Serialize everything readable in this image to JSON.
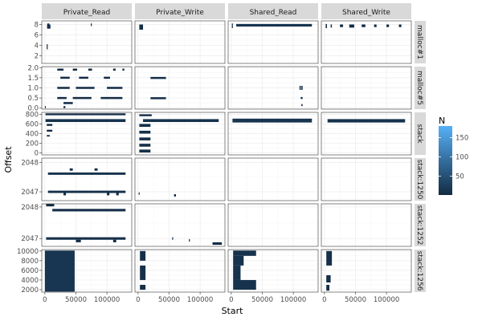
{
  "chart_data": {
    "type": "heatmap",
    "title": "",
    "xlabel": "Start",
    "ylabel": "Offset",
    "columns": [
      "Private_Read",
      "Private_Write",
      "Shared_Read",
      "Shared_Write"
    ],
    "x_ticks": [
      "0",
      "50000",
      "100000"
    ],
    "x_tick_values": [
      0,
      50000,
      100000
    ],
    "xlim": [
      -5000,
      140000
    ],
    "legend": {
      "title": "N",
      "position": "right",
      "ticks": [
        "50",
        "100",
        "150"
      ],
      "tick_values": [
        50,
        100,
        150
      ],
      "range": [
        1,
        180
      ],
      "color_low": "#132b43",
      "color_high": "#56b1f7"
    },
    "grid": true,
    "panel_bg": "#ffffff",
    "grid_color": "#ebebeb",
    "strip_bg": "#d9d9d9",
    "rows": [
      {
        "name": "malloc#1",
        "yticks": [
          "2",
          "4",
          "6",
          "8"
        ],
        "ytick_values": [
          2,
          4,
          6,
          8
        ],
        "ylim": [
          0.5,
          8.7
        ],
        "cells": {
          "Private_Read": [
            {
              "x0": 3000,
              "x1": 4000,
              "y0": 3.2,
              "y1": 4.2,
              "n": 3
            },
            {
              "x0": 3500,
              "x1": 9000,
              "y0": 7.2,
              "y1": 8.0,
              "n": 8
            },
            {
              "x0": 4000,
              "x1": 7000,
              "y0": 7.8,
              "y1": 8.2,
              "n": 6
            },
            {
              "x0": 74000,
              "x1": 75500,
              "y0": 7.7,
              "y1": 8.2,
              "n": 2
            }
          ],
          "Private_Write": [
            {
              "x0": 2000,
              "x1": 8000,
              "y0": 7.0,
              "y1": 8.0,
              "n": 6
            }
          ],
          "Shared_Read": [
            {
              "x0": 1000,
              "x1": 2500,
              "y0": 7.3,
              "y1": 8.2,
              "n": 3
            },
            {
              "x0": 8000,
              "x1": 130000,
              "y0": 7.6,
              "y1": 8.1,
              "n": 14
            }
          ],
          "Shared_Write": [
            {
              "x0": 2000,
              "x1": 4000,
              "y0": 7.3,
              "y1": 8.1,
              "n": 4
            },
            {
              "x0": 10000,
              "x1": 12000,
              "y0": 7.4,
              "y1": 8.0,
              "n": 2
            },
            {
              "x0": 25000,
              "x1": 30000,
              "y0": 7.5,
              "y1": 8.0,
              "n": 3
            },
            {
              "x0": 40000,
              "x1": 48000,
              "y0": 7.4,
              "y1": 8.0,
              "n": 3
            },
            {
              "x0": 60000,
              "x1": 66000,
              "y0": 7.5,
              "y1": 8.0,
              "n": 3
            },
            {
              "x0": 80000,
              "x1": 84000,
              "y0": 7.5,
              "y1": 8.0,
              "n": 2
            },
            {
              "x0": 100000,
              "x1": 104000,
              "y0": 7.5,
              "y1": 8.0,
              "n": 3
            },
            {
              "x0": 120000,
              "x1": 124000,
              "y0": 7.5,
              "y1": 8.0,
              "n": 2
            }
          ]
        }
      },
      {
        "name": "malloc#5",
        "yticks": [
          "0.0",
          "0.5",
          "1.0",
          "1.5",
          "2.0"
        ],
        "ytick_values": [
          0,
          0.5,
          1.0,
          1.5,
          2.0
        ],
        "ylim": [
          -0.05,
          2.05
        ],
        "cells": {
          "Private_Read": [
            {
              "x0": 20000,
              "x1": 30000,
              "y0": 1.85,
              "y1": 1.95,
              "n": 3
            },
            {
              "x0": 45000,
              "x1": 52000,
              "y0": 1.85,
              "y1": 1.95,
              "n": 2
            },
            {
              "x0": 70000,
              "x1": 76000,
              "y0": 1.85,
              "y1": 1.95,
              "n": 2
            },
            {
              "x0": 110000,
              "x1": 114000,
              "y0": 1.85,
              "y1": 1.95,
              "n": 2
            },
            {
              "x0": 125000,
              "x1": 128000,
              "y0": 1.85,
              "y1": 1.95,
              "n": 2
            },
            {
              "x0": 25000,
              "x1": 40000,
              "y0": 1.45,
              "y1": 1.55,
              "n": 3
            },
            {
              "x0": 55000,
              "x1": 70000,
              "y0": 1.45,
              "y1": 1.55,
              "n": 3
            },
            {
              "x0": 95000,
              "x1": 105000,
              "y0": 1.45,
              "y1": 1.55,
              "n": 2
            },
            {
              "x0": 20000,
              "x1": 40000,
              "y0": 0.95,
              "y1": 1.05,
              "n": 3
            },
            {
              "x0": 50000,
              "x1": 80000,
              "y0": 0.95,
              "y1": 1.05,
              "n": 3
            },
            {
              "x0": 100000,
              "x1": 125000,
              "y0": 0.95,
              "y1": 1.05,
              "n": 3
            },
            {
              "x0": 20000,
              "x1": 35000,
              "y0": 0.45,
              "y1": 0.55,
              "n": 3
            },
            {
              "x0": 45000,
              "x1": 75000,
              "y0": 0.45,
              "y1": 0.55,
              "n": 3
            },
            {
              "x0": 90000,
              "x1": 125000,
              "y0": 0.45,
              "y1": 0.55,
              "n": 3
            },
            {
              "x0": 30000,
              "x1": 45000,
              "y0": 0.2,
              "y1": 0.3,
              "n": 2
            },
            {
              "x0": 30000,
              "x1": 33000,
              "y0": 0.0,
              "y1": 0.1,
              "n": 2
            },
            {
              "x0": 0,
              "x1": 1500,
              "y0": 0.0,
              "y1": 0.1,
              "n": 2
            }
          ],
          "Private_Write": [
            {
              "x0": 20000,
              "x1": 45000,
              "y0": 1.44,
              "y1": 1.54,
              "n": 6
            },
            {
              "x0": 20000,
              "x1": 45000,
              "y0": 0.44,
              "y1": 0.54,
              "n": 6
            }
          ],
          "Shared_Read": [
            {
              "x0": 110000,
              "x1": 112000,
              "y0": 0.9,
              "y1": 1.1,
              "n": 2
            },
            {
              "x0": 113000,
              "x1": 115000,
              "y0": 0.9,
              "y1": 1.1,
              "n": 2
            },
            {
              "x0": 112000,
              "x1": 115000,
              "y0": 0.45,
              "y1": 0.55,
              "n": 2
            },
            {
              "x0": 113000,
              "x1": 115000,
              "y0": 0.1,
              "y1": 0.2,
              "n": 2
            }
          ],
          "Shared_Write": []
        }
      },
      {
        "name": "stack",
        "yticks": [
          "0",
          "200",
          "400",
          "600",
          "800"
        ],
        "ytick_values": [
          0,
          200,
          400,
          600,
          800
        ],
        "ylim": [
          -40,
          840
        ],
        "cells": {
          "Private_Read": [
            {
              "x0": 1000,
              "x1": 130000,
              "y0": 780,
              "y1": 820,
              "n": 8
            },
            {
              "x0": 1000,
              "x1": 130000,
              "y0": 640,
              "y1": 700,
              "n": 10
            },
            {
              "x0": 3000,
              "x1": 12000,
              "y0": 560,
              "y1": 600,
              "n": 4
            },
            {
              "x0": 3000,
              "x1": 12000,
              "y0": 440,
              "y1": 480,
              "n": 4
            },
            {
              "x0": 3000,
              "x1": 8000,
              "y0": 340,
              "y1": 370,
              "n": 3
            }
          ],
          "Private_Write": [
            {
              "x0": 8000,
              "x1": 130000,
              "y0": 640,
              "y1": 700,
              "n": 10
            },
            {
              "x0": 2000,
              "x1": 22000,
              "y0": 760,
              "y1": 800,
              "n": 5
            },
            {
              "x0": 2000,
              "x1": 20000,
              "y0": 540,
              "y1": 600,
              "n": 6
            },
            {
              "x0": 2000,
              "x1": 20000,
              "y0": 400,
              "y1": 460,
              "n": 6
            },
            {
              "x0": 2000,
              "x1": 20000,
              "y0": 260,
              "y1": 320,
              "n": 6
            },
            {
              "x0": 2000,
              "x1": 20000,
              "y0": 130,
              "y1": 190,
              "n": 6
            },
            {
              "x0": 2000,
              "x1": 20000,
              "y0": 10,
              "y1": 70,
              "n": 6
            }
          ],
          "Shared_Read": [
            {
              "x0": 2000,
              "x1": 130000,
              "y0": 630,
              "y1": 710,
              "n": 14
            }
          ],
          "Shared_Write": [
            {
              "x0": 5000,
              "x1": 130000,
              "y0": 630,
              "y1": 700,
              "n": 12
            }
          ]
        }
      },
      {
        "name": "stack:1250",
        "yticks": [
          "2047",
          "2048"
        ],
        "ytick_values": [
          2047,
          2048
        ],
        "ylim": [
          2046.7,
          2048.15
        ],
        "cells": {
          "Private_Read": [
            {
              "x0": 5000,
              "x1": 130000,
              "y0": 2047.58,
              "y1": 2047.66,
              "n": 8
            },
            {
              "x0": 5000,
              "x1": 130000,
              "y0": 2046.96,
              "y1": 2047.04,
              "n": 8
            },
            {
              "x0": 40000,
              "x1": 45000,
              "y0": 2047.72,
              "y1": 2047.8,
              "n": 3
            },
            {
              "x0": 80000,
              "x1": 85000,
              "y0": 2047.72,
              "y1": 2047.8,
              "n": 3
            },
            {
              "x0": 30000,
              "x1": 34000,
              "y0": 2046.88,
              "y1": 2046.96,
              "n": 2
            },
            {
              "x0": 100000,
              "x1": 104000,
              "y0": 2046.88,
              "y1": 2046.96,
              "n": 2
            },
            {
              "x0": 115000,
              "x1": 119000,
              "y0": 2046.88,
              "y1": 2046.96,
              "n": 2
            }
          ],
          "Private_Write": [
            {
              "x0": 58000,
              "x1": 61000,
              "y0": 2046.84,
              "y1": 2046.92,
              "n": 3
            },
            {
              "x0": 1000,
              "x1": 1800,
              "y0": 2046.9,
              "y1": 2046.98,
              "n": 2
            }
          ],
          "Shared_Read": [],
          "Shared_Write": []
        }
      },
      {
        "name": "stack:1252",
        "yticks": [
          "2047",
          "2048"
        ],
        "ytick_values": [
          2047,
          2048
        ],
        "ylim": [
          2046.75,
          2048.1
        ],
        "cells": {
          "Private_Read": [
            {
              "x0": 2000,
              "x1": 15000,
              "y0": 2048.02,
              "y1": 2048.1,
              "n": 4
            },
            {
              "x0": 12000,
              "x1": 130000,
              "y0": 2047.86,
              "y1": 2047.94,
              "n": 8
            },
            {
              "x0": 2000,
              "x1": 130000,
              "y0": 2046.96,
              "y1": 2047.04,
              "n": 8
            },
            {
              "x0": 50000,
              "x1": 58000,
              "y0": 2046.88,
              "y1": 2046.96,
              "n": 2
            },
            {
              "x0": 110000,
              "x1": 115000,
              "y0": 2046.88,
              "y1": 2046.96,
              "n": 2
            }
          ],
          "Private_Write": [
            {
              "x0": 55000,
              "x1": 56000,
              "y0": 2046.96,
              "y1": 2047.04,
              "n": 2
            },
            {
              "x0": 82000,
              "x1": 83000,
              "y0": 2046.9,
              "y1": 2046.98,
              "n": 2
            },
            {
              "x0": 120000,
              "x1": 135000,
              "y0": 2046.8,
              "y1": 2046.88,
              "n": 3
            }
          ],
          "Shared_Read": [],
          "Shared_Write": []
        }
      },
      {
        "name": "stack:1256",
        "yticks": [
          "2000",
          "4000",
          "6000",
          "8000",
          "10000"
        ],
        "ytick_values": [
          2000,
          4000,
          6000,
          8000,
          10000
        ],
        "ylim": [
          1500,
          10300
        ],
        "cells": {
          "Private_Read": [
            {
              "x0": 0,
              "x1": 48000,
              "y0": 1600,
              "y1": 10100,
              "n": 15
            }
          ],
          "Private_Write": [
            {
              "x0": 3000,
              "x1": 12000,
              "y0": 8000,
              "y1": 10000,
              "n": 8
            },
            {
              "x0": 3000,
              "x1": 12000,
              "y0": 4000,
              "y1": 7000,
              "n": 8
            },
            {
              "x0": 3000,
              "x1": 12000,
              "y0": 2000,
              "y1": 3000,
              "n": 6
            }
          ],
          "Shared_Read": [
            {
              "x0": 3000,
              "x1": 40000,
              "y0": 9000,
              "y1": 10100,
              "n": 10
            },
            {
              "x0": 3000,
              "x1": 20000,
              "y0": 7000,
              "y1": 9000,
              "n": 10
            },
            {
              "x0": 3000,
              "x1": 15000,
              "y0": 4000,
              "y1": 7000,
              "n": 10
            },
            {
              "x0": 3000,
              "x1": 40000,
              "y0": 2000,
              "y1": 4000,
              "n": 10
            }
          ],
          "Shared_Write": [
            {
              "x0": 3000,
              "x1": 12000,
              "y0": 7000,
              "y1": 10000,
              "n": 8
            },
            {
              "x0": 3000,
              "x1": 10000,
              "y0": 3500,
              "y1": 5000,
              "n": 6
            },
            {
              "x0": 3000,
              "x1": 8000,
              "y0": 1800,
              "y1": 3000,
              "n": 5
            }
          ]
        }
      }
    ]
  }
}
